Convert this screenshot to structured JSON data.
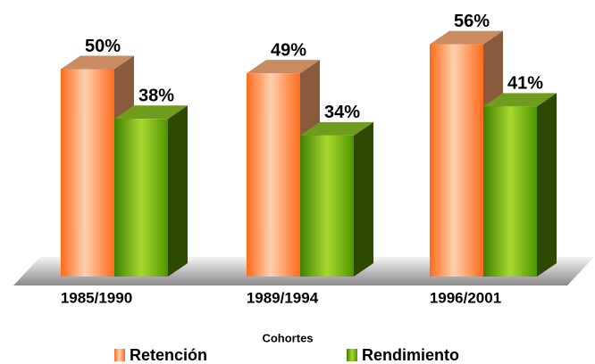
{
  "chart_data": {
    "type": "bar3d",
    "x_label": "Cohortes",
    "categories": [
      "1985/1990",
      "1989/1994",
      "1996/2001"
    ],
    "series": [
      {
        "name": "Retención",
        "color": "#ff6a1a",
        "values": [
          50,
          49,
          56
        ],
        "value_labels": [
          "50%",
          "49%",
          "56%"
        ]
      },
      {
        "name": "Rendimiento",
        "color": "#66aa00",
        "values": [
          38,
          34,
          41
        ],
        "value_labels": [
          "38%",
          "34%",
          "41%"
        ]
      }
    ],
    "legend": "bottom"
  }
}
